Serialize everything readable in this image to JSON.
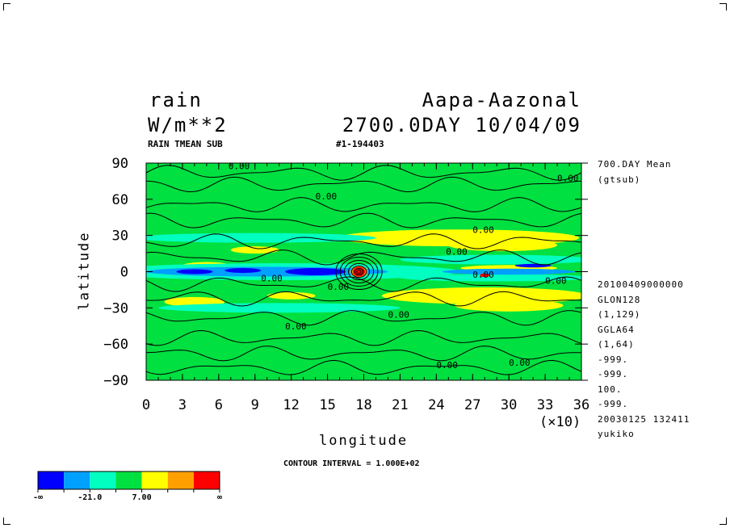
{
  "header": {
    "variable": "rain",
    "units": "W/m**2",
    "experiment": "Aapa-Aazonal",
    "time": "2700.0DAY 10/04/09",
    "subtitle_left": "RAIN TMEAN SUB",
    "subtitle_right": "#1-194403"
  },
  "side_info": {
    "lines": [
      "700.DAY Mean",
      "(gtsub)"
    ],
    "lines_lower": [
      "20100409000000",
      "GLON128",
      "(1,129)",
      "GGLA64",
      "(1,64)",
      "-999.",
      "-999.",
      "100.",
      "-999.",
      "20030125 132411",
      "yukiko"
    ]
  },
  "footer": {
    "contour_interval": "CONTOUR INTERVAL = 1.000E+02"
  },
  "colorbar": {
    "colors": [
      "#0000ff",
      "#00a0ff",
      "#00ffc0",
      "#00e040",
      "#ffff00",
      "#ffa000",
      "#ff0000"
    ],
    "labels": [
      "-∞",
      "-21.0",
      "7.00",
      "∞"
    ]
  },
  "chart_data": {
    "type": "heatmap",
    "title": "rain",
    "xlabel": "longitude",
    "ylabel": "latitude",
    "x_multiplier_label": "(×10)",
    "xlim": [
      0,
      36
    ],
    "ylim": [
      -90,
      90
    ],
    "x_ticks": [
      "0",
      "3",
      "6",
      "9",
      "12",
      "15",
      "18",
      "21",
      "24",
      "27",
      "30",
      "33",
      "36"
    ],
    "y_ticks": [
      "90",
      "60",
      "30",
      "0",
      "−30",
      "−60",
      "−90"
    ],
    "contour_labels": [
      "0.00",
      "0.00",
      "0.00",
      "0.00",
      "0.00",
      "0.00",
      "0.00",
      "0.00",
      "0.00",
      "0.00",
      "0.00",
      "0.00",
      "0.00"
    ],
    "background_color": "#00e040",
    "features": [
      {
        "kind": "yellow",
        "lon": 258,
        "lat": 28,
        "w": 200,
        "h": 14
      },
      {
        "kind": "yellow",
        "lon": 295,
        "lat": 22,
        "w": 90,
        "h": 10
      },
      {
        "kind": "yellow",
        "lon": 280,
        "lat": -20,
        "w": 170,
        "h": 14
      },
      {
        "kind": "yellow",
        "lon": 300,
        "lat": -28,
        "w": 90,
        "h": 10
      },
      {
        "kind": "yellow",
        "lon": 50,
        "lat": 5,
        "w": 40,
        "h": 6
      },
      {
        "kind": "yellow",
        "lon": 90,
        "lat": 18,
        "w": 40,
        "h": 6
      },
      {
        "kind": "yellow",
        "lon": 40,
        "lat": -25,
        "w": 50,
        "h": 8
      },
      {
        "kind": "yellow",
        "lon": 120,
        "lat": -20,
        "w": 40,
        "h": 6
      },
      {
        "kind": "yellow",
        "lon": 300,
        "lat": 3,
        "w": 80,
        "h": 5
      },
      {
        "kind": "cyan",
        "lon": 110,
        "lat": 0,
        "w": 300,
        "h": 14
      },
      {
        "kind": "cyan",
        "lon": 90,
        "lat": 28,
        "w": 200,
        "h": 8
      },
      {
        "kind": "cyan",
        "lon": 110,
        "lat": -30,
        "w": 200,
        "h": 8
      },
      {
        "kind": "cyan",
        "lon": 290,
        "lat": 10,
        "w": 160,
        "h": 8
      },
      {
        "kind": "cyan",
        "lon": 290,
        "lat": -5,
        "w": 160,
        "h": 6
      },
      {
        "kind": "ltblue",
        "lon": 100,
        "lat": 0,
        "w": 200,
        "h": 8
      },
      {
        "kind": "ltblue",
        "lon": 300,
        "lat": 0,
        "w": 110,
        "h": 5
      },
      {
        "kind": "blue",
        "lon": 140,
        "lat": 0,
        "w": 50,
        "h": 6
      },
      {
        "kind": "blue",
        "lon": 40,
        "lat": 0,
        "w": 30,
        "h": 4
      },
      {
        "kind": "blue",
        "lon": 80,
        "lat": 1,
        "w": 30,
        "h": 4
      },
      {
        "kind": "blue",
        "lon": 320,
        "lat": 5,
        "w": 30,
        "h": 3
      },
      {
        "kind": "orange",
        "lon": 176,
        "lat": 0,
        "w": 14,
        "h": 10
      },
      {
        "kind": "red",
        "lon": 176,
        "lat": 0,
        "w": 10,
        "h": 8
      },
      {
        "kind": "red",
        "lon": 280,
        "lat": -3,
        "w": 8,
        "h": 3
      }
    ],
    "grid": false,
    "legend": "bottom-left"
  }
}
